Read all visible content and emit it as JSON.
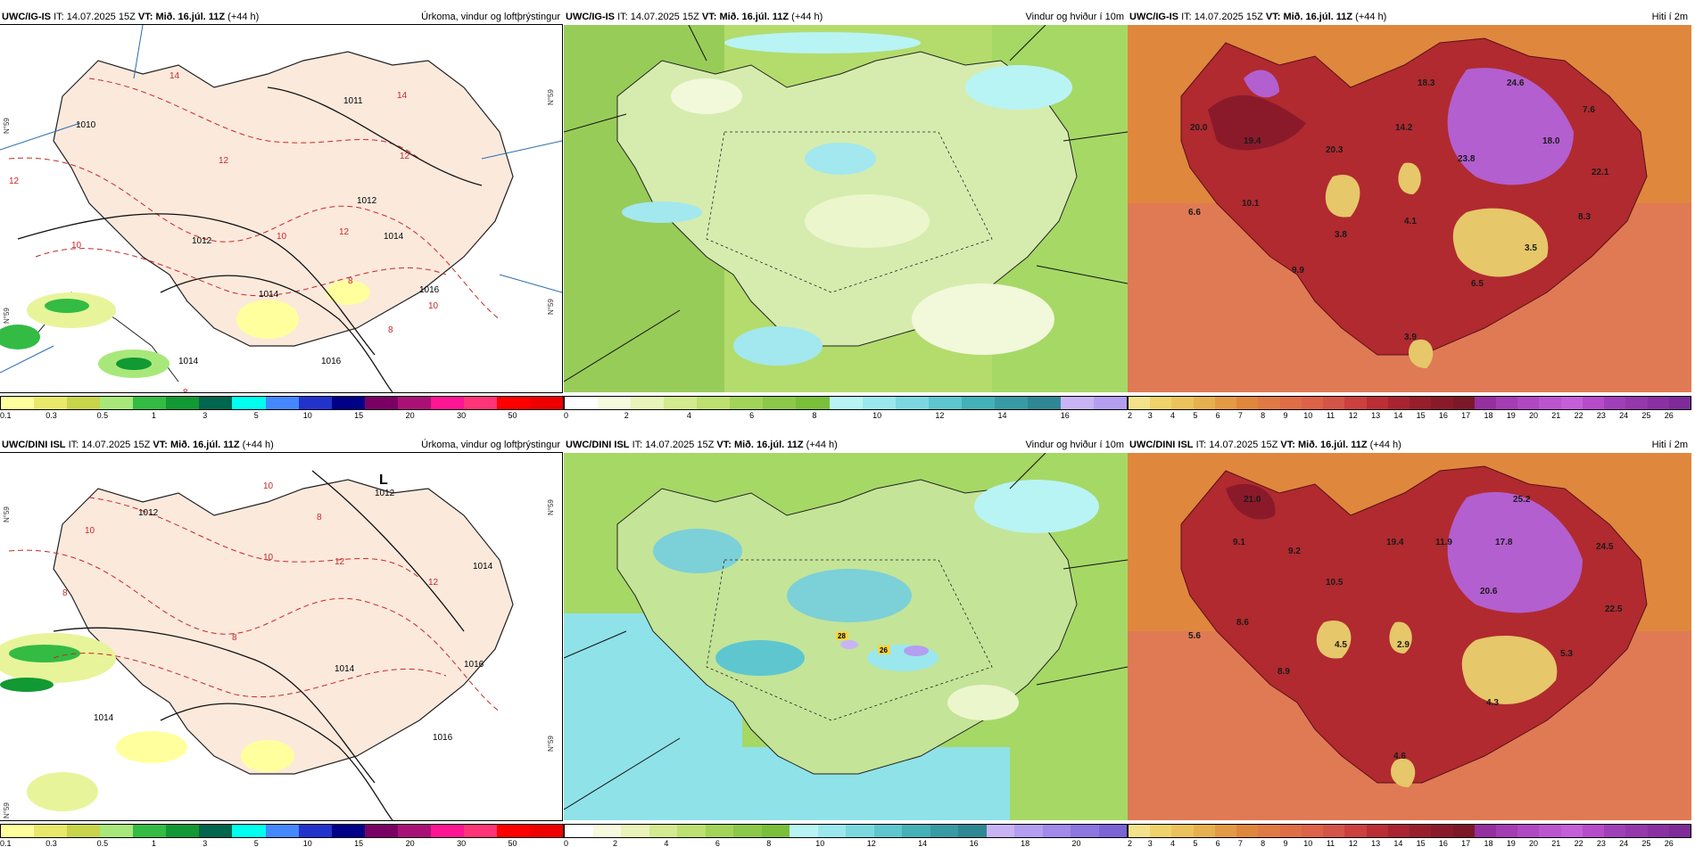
{
  "rows": [
    {
      "model": "UWC/IG-IS",
      "it_label": "IT:",
      "it_value": "14.07.2025 15Z",
      "vt_label": "VT:",
      "vt_value": "Mið. 16.júl. 11Z",
      "lead": "(+44 h)",
      "panels": [
        {
          "title": "Úrkoma, vindur og loftþrýstingur",
          "colorbar": {
            "colors": [
              "#ffff9e",
              "#e8e86a",
              "#c8d44a",
              "#a8e87a",
              "#33bb44",
              "#119933",
              "#00664e",
              "#00ffee",
              "#4488ff",
              "#2233cc",
              "#000088",
              "#7a0066",
              "#aa1177",
              "#ff1493",
              "#ff3377",
              "#ff0000",
              "#ee0000"
            ],
            "ticks": [
              "0.1",
              "0.3",
              "0.5",
              "1",
              "3",
              "5",
              "10",
              "15",
              "20",
              "30",
              "50"
            ]
          },
          "pressure_labels": [
            "1011",
            "1010",
            "1012",
            "1012",
            "1014",
            "1014",
            "1014",
            "1016",
            "1016"
          ],
          "precip_labels": [
            "14",
            "14",
            "12",
            "12",
            "12",
            "12",
            "10",
            "10",
            "10",
            "8",
            "8",
            "8"
          ],
          "grid_labels": [
            "N°59",
            "N°59",
            "N°59",
            "N°59"
          ]
        },
        {
          "title": "Vindur og hviður í 10m",
          "colorbar": {
            "colors": [
              "#ffffff",
              "#f6fadf",
              "#e8f4b8",
              "#d3ea90",
              "#bde070",
              "#a2d45a",
              "#8cc84a",
              "#7abf3a",
              "#b8f4f4",
              "#9ae8ee",
              "#7cd8e0",
              "#5ec6cf",
              "#44b0b8",
              "#389aa4",
              "#2e8894",
              "#c8b4f4",
              "#b49ef0"
            ],
            "ticks": [
              "0",
              "2",
              "4",
              "6",
              "8",
              "10",
              "12",
              "14",
              "16"
            ]
          }
        },
        {
          "title": "Hiti í 2m",
          "colorbar": {
            "colors": [
              "#f4e28a",
              "#f0d26a",
              "#ebc35c",
              "#e6b04e",
              "#e39a44",
              "#e0873e",
              "#e07a44",
              "#df6e46",
              "#dc6248",
              "#d55448",
              "#cc4040",
              "#bb2e34",
              "#a92430",
              "#981e2c",
              "#8a1a2a",
              "#7c1828",
              "#962fa0",
              "#a43cb4",
              "#b048c4",
              "#bb55cf",
              "#c45fd8",
              "#b64cca",
              "#a040b8",
              "#9438ac",
              "#8a30a2",
              "#7e2a98"
            ],
            "ticks": [
              "2",
              "3",
              "4",
              "5",
              "6",
              "7",
              "8",
              "9",
              "10",
              "11",
              "12",
              "13",
              "14",
              "15",
              "16",
              "17",
              "18",
              "19",
              "20",
              "21",
              "22",
              "23",
              "24",
              "25",
              "26"
            ]
          },
          "temp_labels": [
            "20.0",
            "19.4",
            "20.3",
            "14.2",
            "18.3",
            "24.6",
            "7.6",
            "18.0",
            "23.8",
            "22.1",
            "6.6",
            "10.1",
            "3.8",
            "4.1",
            "8.3",
            "3.5",
            "9.9",
            "6.5",
            "3.9"
          ]
        }
      ]
    },
    {
      "model": "UWC/DINI ISL",
      "it_label": "IT:",
      "it_value": "14.07.2025 15Z",
      "vt_label": "VT:",
      "vt_value": "Mið. 16.júl. 11Z",
      "lead": "(+44 h)",
      "panels": [
        {
          "title": "Úrkoma, vindur og loftþrýstingur",
          "colorbar": {
            "colors": [
              "#ffff9e",
              "#e8e86a",
              "#c8d44a",
              "#a8e87a",
              "#33bb44",
              "#119933",
              "#00664e",
              "#00ffee",
              "#4488ff",
              "#2233cc",
              "#000088",
              "#7a0066",
              "#aa1177",
              "#ff1493",
              "#ff3377",
              "#ff0000",
              "#ee0000"
            ],
            "ticks": [
              "0.1",
              "0.3",
              "0.5",
              "1",
              "3",
              "5",
              "10",
              "15",
              "20",
              "30",
              "50"
            ]
          },
          "pressure_labels": [
            "1012",
            "1012",
            "1014",
            "1014",
            "1016",
            "1016",
            "1014"
          ],
          "low_label": "L",
          "precip_labels": [
            "12",
            "12",
            "10",
            "10",
            "10",
            "8",
            "8",
            "8"
          ],
          "grid_labels": [
            "N°59",
            "N°59",
            "N°59",
            "N°59"
          ]
        },
        {
          "title": "Vindur og hviður í 10m",
          "colorbar": {
            "colors": [
              "#ffffff",
              "#f6fadf",
              "#e8f4b8",
              "#d3ea90",
              "#bde070",
              "#a2d45a",
              "#8cc84a",
              "#7abf3a",
              "#b8f4f4",
              "#9ae8ee",
              "#7cd8e0",
              "#5ec6cf",
              "#44b0b8",
              "#389aa4",
              "#2e8894",
              "#c8b4f4",
              "#b49ef0",
              "#a08aea",
              "#8c76e0",
              "#7a64d6"
            ],
            "ticks": [
              "0",
              "2",
              "4",
              "6",
              "8",
              "10",
              "12",
              "14",
              "16",
              "18",
              "20"
            ]
          },
          "gust_labels": [
            "28",
            "26"
          ]
        },
        {
          "title": "Hiti í 2m",
          "colorbar": {
            "colors": [
              "#f4e28a",
              "#f0d26a",
              "#ebc35c",
              "#e6b04e",
              "#e39a44",
              "#e0873e",
              "#e07a44",
              "#df6e46",
              "#dc6248",
              "#d55448",
              "#cc4040",
              "#bb2e34",
              "#a92430",
              "#981e2c",
              "#8a1a2a",
              "#7c1828",
              "#962fa0",
              "#a43cb4",
              "#b048c4",
              "#bb55cf",
              "#c45fd8",
              "#b64cca",
              "#a040b8",
              "#9438ac",
              "#8a30a2",
              "#7e2a98"
            ],
            "ticks": [
              "2",
              "3",
              "4",
              "5",
              "6",
              "7",
              "8",
              "9",
              "10",
              "11",
              "12",
              "13",
              "14",
              "15",
              "16",
              "17",
              "18",
              "19",
              "20",
              "21",
              "22",
              "23",
              "24",
              "25",
              "26"
            ]
          },
          "temp_labels": [
            "21.0",
            "25.2",
            "9.1",
            "9.2",
            "19.4",
            "11.9",
            "17.8",
            "24.5",
            "10.5",
            "20.6",
            "22.5",
            "5.6",
            "8.6",
            "4.5",
            "2.9",
            "5.3",
            "8.9",
            "4.3",
            "4.6"
          ]
        }
      ]
    }
  ]
}
